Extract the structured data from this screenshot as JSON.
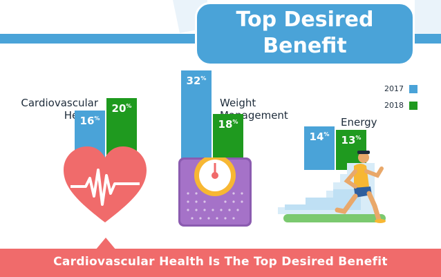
{
  "title_line1": "Top Desired",
  "title_line2": "Benefit",
  "footer": "Cardiovascular Health Is The Top Desired Benefit",
  "colors": {
    "2017": "#4aa3d8",
    "2018": "#1f9a1f",
    "accent_red": "#f06b6b"
  },
  "chart_data": {
    "type": "bar",
    "categories": [
      "Cardiovascular Health",
      "Weight Management",
      "Energy"
    ],
    "series": [
      {
        "name": "2017",
        "values": [
          16,
          32,
          14
        ]
      },
      {
        "name": "2018",
        "values": [
          20,
          18,
          13
        ]
      }
    ],
    "unit": "%",
    "legend": "top-right",
    "category_labels": [
      [
        "Cardiovascular",
        "Health"
      ],
      [
        "Weight",
        "Management"
      ],
      [
        "Energy"
      ]
    ]
  }
}
